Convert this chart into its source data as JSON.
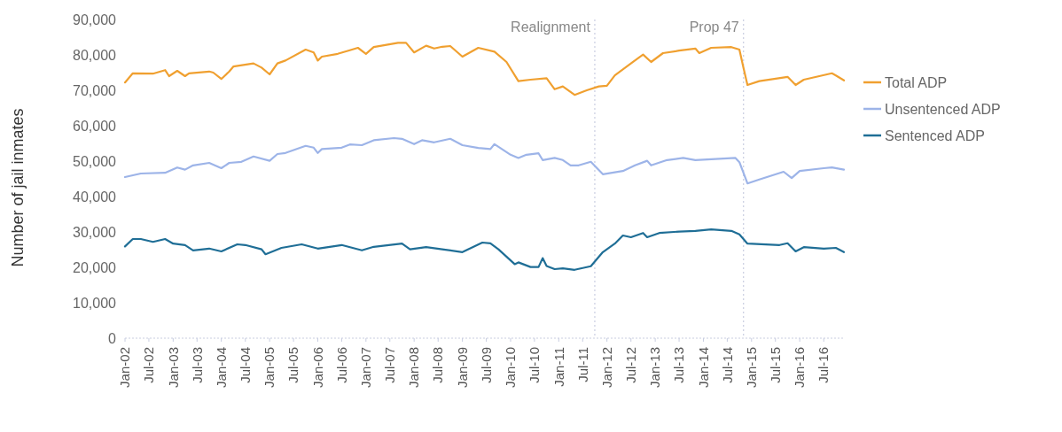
{
  "chart_data": {
    "type": "line",
    "ylabel": "Number of jail inmates",
    "legend": "right",
    "grid": false,
    "line_style": "solid",
    "marker": "none",
    "xlim": [
      "2002-01",
      "2016-12"
    ],
    "xticks": [
      {
        "value": "2002-01",
        "label": "Jan-02"
      },
      {
        "value": "2002-07",
        "label": "Jul-02"
      },
      {
        "value": "2003-01",
        "label": "Jan-03"
      },
      {
        "value": "2003-07",
        "label": "Jul-03"
      },
      {
        "value": "2004-01",
        "label": "Jan-04"
      },
      {
        "value": "2004-07",
        "label": "Jul-04"
      },
      {
        "value": "2005-01",
        "label": "Jan-05"
      },
      {
        "value": "2005-07",
        "label": "Jul-05"
      },
      {
        "value": "2006-01",
        "label": "Jan-06"
      },
      {
        "value": "2006-07",
        "label": "Jul-06"
      },
      {
        "value": "2007-01",
        "label": "Jan-07"
      },
      {
        "value": "2007-07",
        "label": "Jul-07"
      },
      {
        "value": "2008-01",
        "label": "Jan-08"
      },
      {
        "value": "2008-07",
        "label": "Jul-08"
      },
      {
        "value": "2009-01",
        "label": "Jan-09"
      },
      {
        "value": "2009-07",
        "label": "Jul-09"
      },
      {
        "value": "2010-01",
        "label": "Jan-10"
      },
      {
        "value": "2010-07",
        "label": "Jul-10"
      },
      {
        "value": "2011-01",
        "label": "Jan-11"
      },
      {
        "value": "2011-07",
        "label": "Jul-11"
      },
      {
        "value": "2012-01",
        "label": "Jan-12"
      },
      {
        "value": "2012-07",
        "label": "Jul-12"
      },
      {
        "value": "2013-01",
        "label": "Jan-13"
      },
      {
        "value": "2013-07",
        "label": "Jul-13"
      },
      {
        "value": "2014-01",
        "label": "Jan-14"
      },
      {
        "value": "2014-07",
        "label": "Jul-14"
      },
      {
        "value": "2015-01",
        "label": "Jan-15"
      },
      {
        "value": "2015-07",
        "label": "Jul-15"
      },
      {
        "value": "2016-01",
        "label": "Jan-16"
      },
      {
        "value": "2016-07",
        "label": "Jul-16"
      }
    ],
    "ylim": [
      0,
      90000
    ],
    "yticks": [
      {
        "value": 0,
        "label": "0"
      },
      {
        "value": 10000,
        "label": "10,000"
      },
      {
        "value": 20000,
        "label": "20,000"
      },
      {
        "value": 30000,
        "label": "30,000"
      },
      {
        "value": 40000,
        "label": "40,000"
      },
      {
        "value": 50000,
        "label": "50,000"
      },
      {
        "value": 60000,
        "label": "60,000"
      },
      {
        "value": 70000,
        "label": "70,000"
      },
      {
        "value": 80000,
        "label": "80,000"
      },
      {
        "value": 90000,
        "label": "90,000"
      }
    ],
    "ref_lines": [
      {
        "axis": "x",
        "value": "2011-10",
        "label": "Realignment",
        "color": "#c8cde0",
        "line_style": "dotted"
      },
      {
        "axis": "x",
        "value": "2014-11",
        "label": "Prop 47",
        "color": "#c8cde0",
        "line_style": "dotted"
      }
    ],
    "series": [
      {
        "name": "Total ADP",
        "color": "#f0a030",
        "x": [
          "2002-01",
          "2002-03",
          "2002-08",
          "2002-11",
          "2002-12",
          "2003-02",
          "2003-04",
          "2003-05",
          "2003-10",
          "2003-11",
          "2004-01",
          "2004-03",
          "2004-04",
          "2004-09",
          "2004-11",
          "2005-01",
          "2005-03",
          "2005-05",
          "2005-10",
          "2005-12",
          "2006-01",
          "2006-02",
          "2006-06",
          "2006-09",
          "2006-11",
          "2007-01",
          "2007-03",
          "2007-09",
          "2007-11",
          "2008-01",
          "2008-04",
          "2008-06",
          "2008-08",
          "2008-10",
          "2009-01",
          "2009-05",
          "2009-09",
          "2009-12",
          "2010-03",
          "2010-06",
          "2010-10",
          "2010-12",
          "2011-02",
          "2011-05",
          "2011-08",
          "2011-11",
          "2012-01",
          "2012-03",
          "2012-07",
          "2012-10",
          "2012-12",
          "2013-03",
          "2013-07",
          "2013-11",
          "2013-12",
          "2014-03",
          "2014-08",
          "2014-10",
          "2014-11",
          "2014-12",
          "2015-03",
          "2015-10",
          "2015-12",
          "2016-02",
          "2016-09",
          "2016-10",
          "2016-12"
        ],
        "values": [
          72200,
          74800,
          74700,
          75700,
          74000,
          75500,
          74000,
          74800,
          75300,
          75000,
          73200,
          75300,
          76700,
          77600,
          76400,
          74500,
          77600,
          78400,
          81500,
          80700,
          78400,
          79500,
          80300,
          81300,
          82000,
          80300,
          82200,
          83400,
          83400,
          80700,
          82600,
          81800,
          82300,
          82500,
          79500,
          82000,
          80900,
          78000,
          72600,
          73000,
          73400,
          70300,
          71100,
          68700,
          70000,
          71100,
          71300,
          74200,
          77600,
          80100,
          78000,
          80500,
          81200,
          81800,
          80500,
          82000,
          82200,
          81500,
          76300,
          71500,
          72600,
          73800,
          71500,
          73000,
          74800,
          74200,
          72800
        ]
      },
      {
        "name": "Unsentenced ADP",
        "color": "#9db4e8",
        "x": [
          "2002-01",
          "2002-05",
          "2002-11",
          "2003-02",
          "2003-04",
          "2003-06",
          "2003-10",
          "2004-01",
          "2004-03",
          "2004-06",
          "2004-09",
          "2005-01",
          "2005-03",
          "2005-05",
          "2005-10",
          "2005-12",
          "2006-01",
          "2006-02",
          "2006-07",
          "2006-09",
          "2006-12",
          "2007-03",
          "2007-08",
          "2007-10",
          "2008-01",
          "2008-03",
          "2008-06",
          "2008-10",
          "2009-01",
          "2009-05",
          "2009-08",
          "2009-09",
          "2010-01",
          "2010-03",
          "2010-05",
          "2010-08",
          "2010-09",
          "2010-12",
          "2011-02",
          "2011-04",
          "2011-06",
          "2011-09",
          "2011-12",
          "2012-05",
          "2012-08",
          "2012-11",
          "2012-12",
          "2013-04",
          "2013-08",
          "2013-11",
          "2014-09",
          "2014-10",
          "2014-12",
          "2015-03",
          "2015-09",
          "2015-11",
          "2016-01",
          "2016-07",
          "2016-09",
          "2016-12"
        ],
        "values": [
          45500,
          46500,
          46700,
          48200,
          47600,
          48800,
          49500,
          48000,
          49500,
          49800,
          51300,
          50100,
          52000,
          52300,
          54300,
          53800,
          52300,
          53400,
          53800,
          54700,
          54500,
          55900,
          56500,
          56300,
          54800,
          55900,
          55300,
          56300,
          54500,
          53700,
          53400,
          54800,
          51800,
          50900,
          51800,
          52200,
          50300,
          50900,
          50300,
          48800,
          48800,
          49800,
          46300,
          47200,
          48800,
          50100,
          48800,
          50300,
          50900,
          50300,
          50900,
          49700,
          43700,
          44800,
          47000,
          45200,
          47200,
          48000,
          48200,
          47600
        ]
      },
      {
        "name": "Sentenced ADP",
        "color": "#1f6e96",
        "x": [
          "2002-01",
          "2002-03",
          "2002-05",
          "2002-08",
          "2002-11",
          "2003-01",
          "2003-04",
          "2003-06",
          "2003-10",
          "2004-01",
          "2004-05",
          "2004-07",
          "2004-11",
          "2004-12",
          "2005-04",
          "2005-09",
          "2006-01",
          "2006-07",
          "2006-12",
          "2007-03",
          "2007-10",
          "2007-12",
          "2008-04",
          "2008-08",
          "2009-01",
          "2009-06",
          "2009-08",
          "2009-10",
          "2010-02",
          "2010-03",
          "2010-06",
          "2010-08",
          "2010-09",
          "2010-10",
          "2010-12",
          "2011-02",
          "2011-05",
          "2011-09",
          "2011-12",
          "2012-03",
          "2012-05",
          "2012-07",
          "2012-10",
          "2012-11",
          "2013-02",
          "2013-07",
          "2013-11",
          "2014-03",
          "2014-08",
          "2014-10",
          "2014-12",
          "2015-08",
          "2015-10",
          "2015-12",
          "2016-02",
          "2016-07",
          "2016-10",
          "2016-12"
        ],
        "values": [
          25900,
          28000,
          28000,
          27200,
          28000,
          26700,
          26300,
          24800,
          25300,
          24500,
          26500,
          26300,
          25100,
          23700,
          25500,
          26500,
          25300,
          26300,
          24800,
          25800,
          26700,
          25100,
          25700,
          25100,
          24300,
          27000,
          26800,
          25100,
          20900,
          21400,
          20100,
          20100,
          22600,
          20400,
          19500,
          19700,
          19300,
          20300,
          24300,
          26700,
          29000,
          28500,
          29700,
          28500,
          29700,
          30100,
          30300,
          30700,
          30300,
          29300,
          26700,
          26300,
          26800,
          24500,
          25700,
          25300,
          25500,
          24300
        ]
      }
    ]
  }
}
